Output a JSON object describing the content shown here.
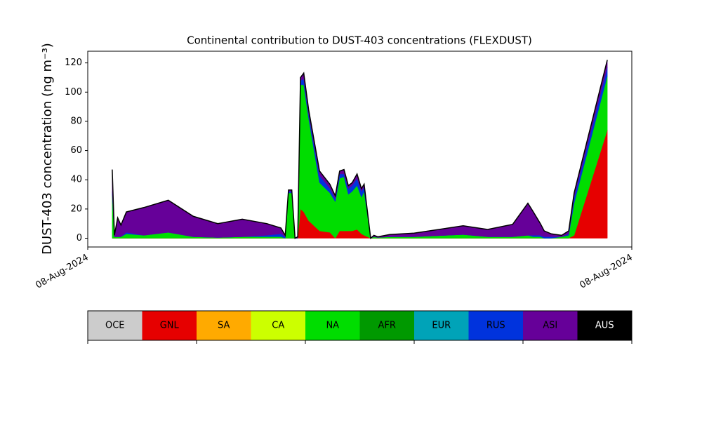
{
  "chart_data": {
    "type": "stacked-area",
    "title": "Continental contribution to DUST-403 concentrations (FLEXDUST)",
    "y_label": "DUST-403 concentration (ng m⁻³)",
    "x": [
      4.5,
      4.9,
      5.5,
      6.1,
      7.1,
      10.3,
      14.8,
      19.4,
      23.9,
      28.4,
      32.9,
      35.5,
      36.3,
      36.9,
      37.5,
      38.1,
      38.6,
      39.1,
      39.7,
      40.6,
      42.6,
      44.5,
      45.5,
      46.3,
      47.1,
      47.9,
      48.6,
      49.5,
      50.3,
      50.8,
      52.0,
      52.6,
      53.3,
      55.5,
      60.0,
      69.0,
      73.5,
      78.1,
      80.9,
      81.9,
      83.2,
      83.9,
      85.2,
      87.1,
      88.4,
      89.4,
      95.5
    ],
    "xlim": [
      0,
      100
    ],
    "xticks": [
      {
        "value": 0,
        "label": "08-Aug-2024"
      },
      {
        "value": 100,
        "label": "08-Aug-2024"
      }
    ],
    "ylim": [
      -6,
      128
    ],
    "yticks": [
      0,
      20,
      40,
      60,
      80,
      100,
      120
    ],
    "series": [
      {
        "name": "GNL",
        "color": "#e60000",
        "values": [
          0,
          0,
          0,
          0,
          0,
          0,
          0,
          0,
          0,
          0,
          0,
          0,
          0,
          0,
          0,
          0,
          0,
          20,
          18,
          12,
          5,
          4,
          0,
          5,
          5,
          5,
          5,
          6,
          3,
          2,
          0,
          0,
          0,
          0,
          0,
          0,
          0,
          0,
          0,
          0,
          0,
          0,
          0,
          0,
          0,
          2,
          74
        ]
      },
      {
        "name": "NA",
        "color": "#00dd00",
        "values": [
          30,
          1,
          1,
          1,
          3,
          2,
          4,
          1,
          0.5,
          1,
          1,
          1,
          0,
          31,
          31,
          0,
          0,
          85,
          87,
          70,
          33,
          27,
          25,
          36,
          37,
          25,
          27,
          30,
          25,
          30,
          0,
          1,
          0.5,
          1,
          1,
          2.5,
          1,
          1,
          2,
          1,
          1,
          0,
          0,
          1,
          2,
          22,
          37
        ]
      },
      {
        "name": "RUS",
        "color": "#0033dd",
        "values": [
          2,
          0,
          0,
          0,
          1,
          0,
          0,
          0,
          0,
          0,
          1,
          2,
          1,
          1,
          1,
          0,
          0,
          3,
          4,
          3,
          5,
          3,
          2,
          3,
          2,
          4,
          4,
          5,
          4,
          3,
          0,
          0,
          0,
          0,
          0,
          0,
          0,
          0,
          0,
          1,
          1,
          1,
          1,
          0,
          1,
          4,
          6
        ]
      },
      {
        "name": "ASI",
        "color": "#660099",
        "values": [
          15,
          1,
          13,
          8,
          14,
          19,
          22,
          14,
          9.5,
          12,
          8,
          4,
          1,
          1,
          1,
          0,
          1,
          2,
          4,
          3,
          3,
          3,
          2,
          2,
          3,
          2,
          2,
          3,
          2,
          2,
          0,
          1,
          0.5,
          1.5,
          2.5,
          6,
          5,
          8.5,
          22,
          16,
          8,
          4,
          2,
          1,
          2,
          3,
          5
        ]
      }
    ],
    "colorbar": {
      "labels": [
        "OCE",
        "GNL",
        "SA",
        "CA",
        "NA",
        "AFR",
        "EUR",
        "RUS",
        "ASI",
        "AUS"
      ],
      "colors": [
        "#cccccc",
        "#e60000",
        "#ffaa00",
        "#ccff00",
        "#00dd00",
        "#009900",
        "#00a3b8",
        "#0033dd",
        "#660099",
        "#000000"
      ]
    }
  }
}
